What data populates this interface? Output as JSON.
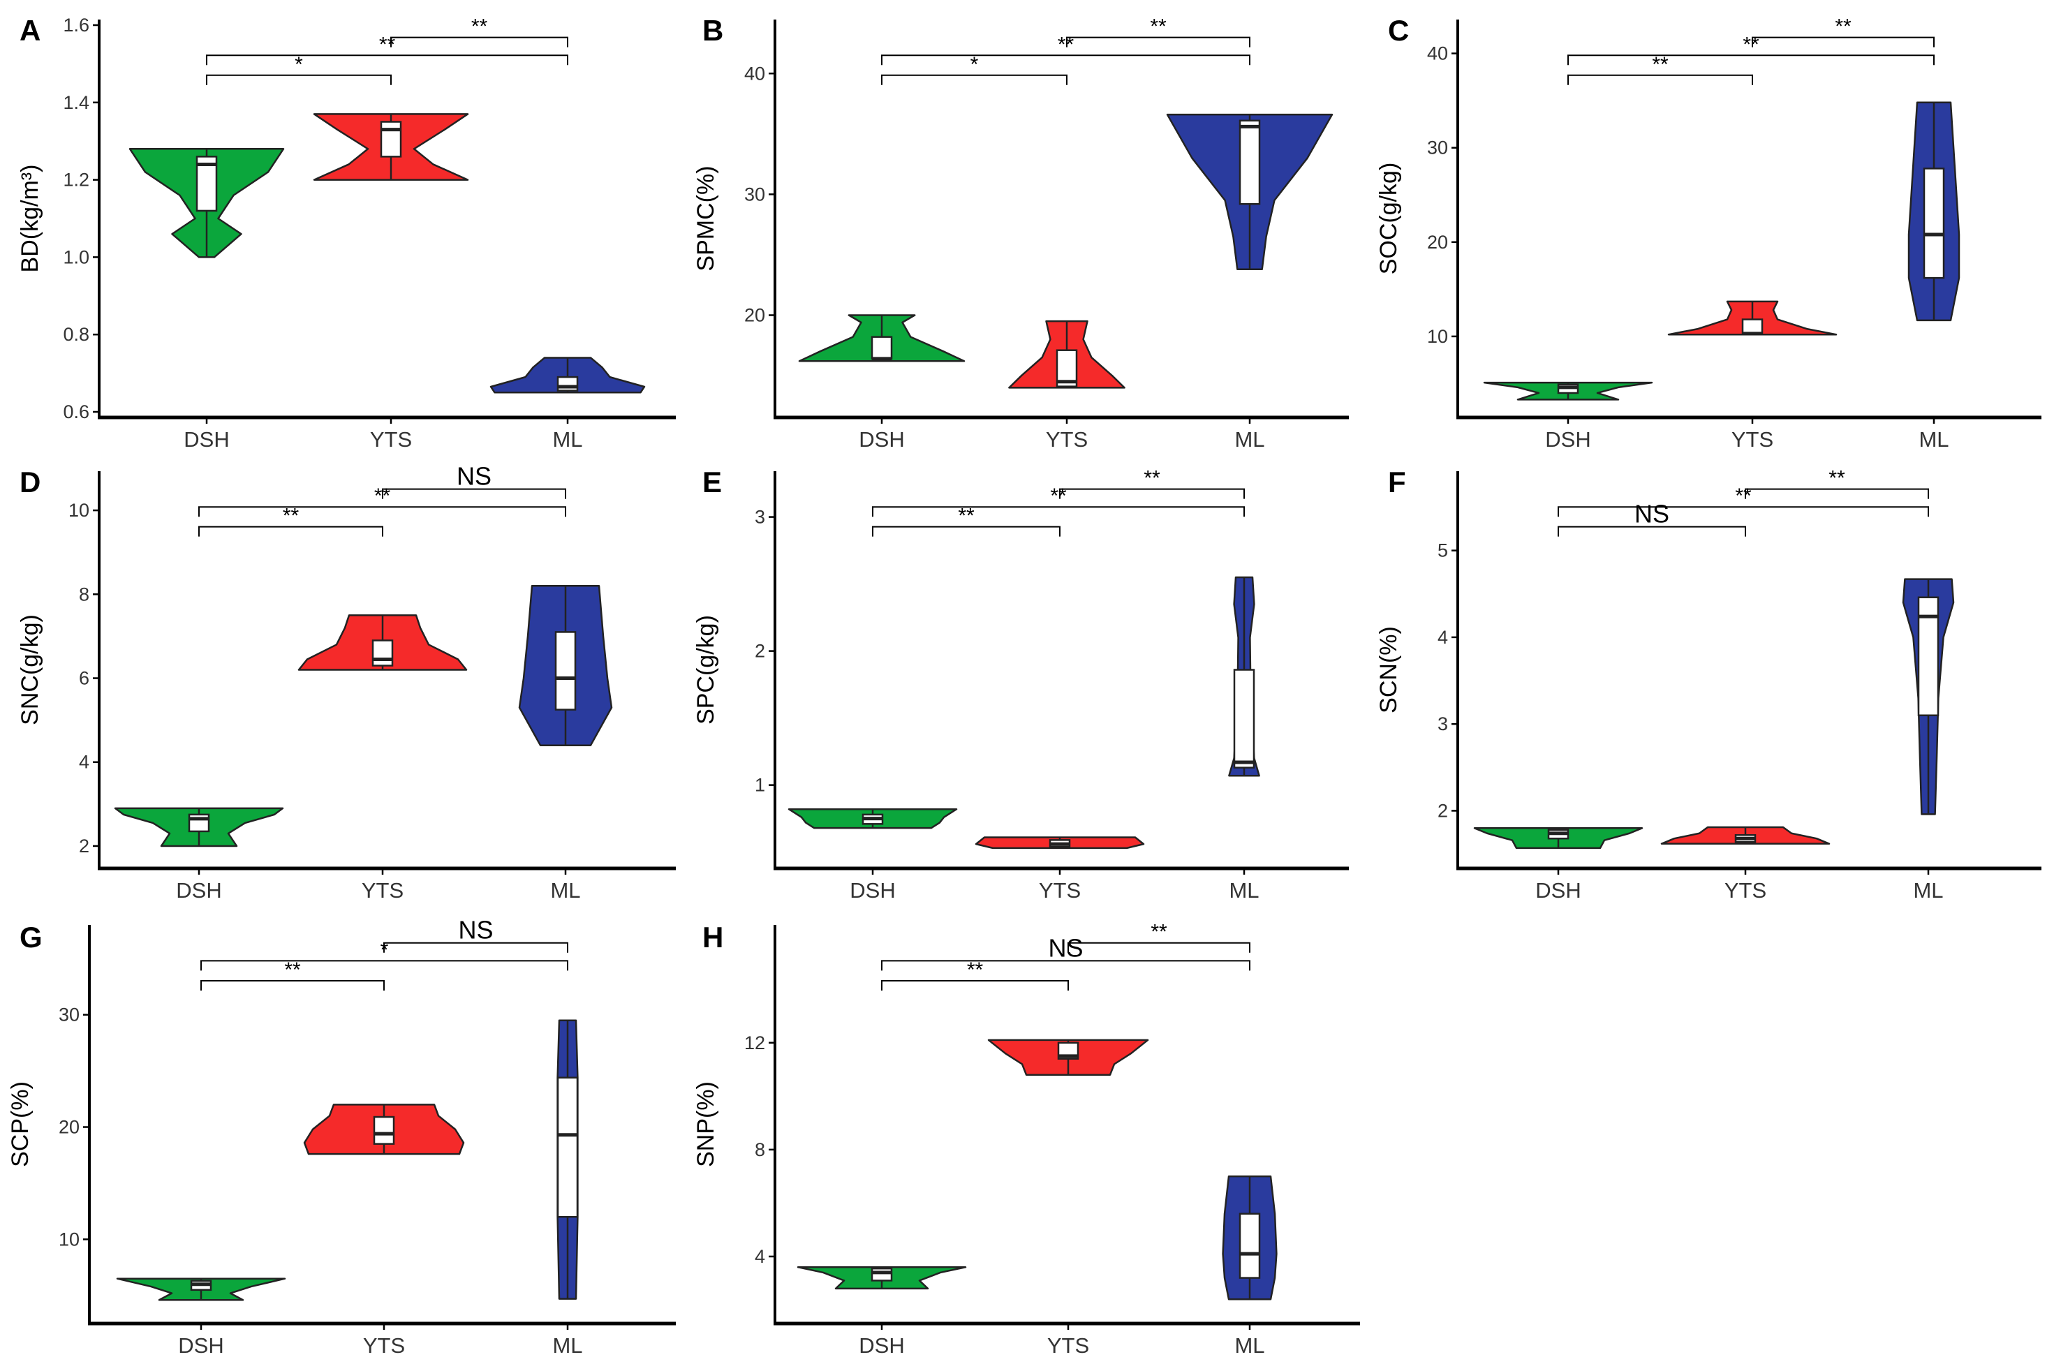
{
  "colors": {
    "DSH": "#0ba63c",
    "YTS": "#f52a2a",
    "ML": "#2a3b9e",
    "box": "#ffffff",
    "line": "#222222"
  },
  "chart_data": [
    {
      "panel": "A",
      "type": "violin",
      "ylabel": "BD(kg/m³)",
      "ylim": [
        0.6,
        1.6
      ],
      "yticks": [
        0.6,
        0.8,
        1.0,
        1.2,
        1.4,
        1.6
      ],
      "ytick_labels": [
        "0.6",
        "0.8",
        "1.0",
        "1.2",
        "1.4",
        "1.6"
      ],
      "categories": [
        "DSH",
        "YTS",
        "ML"
      ],
      "groups": [
        {
          "name": "DSH",
          "min": 1.0,
          "q1": 1.12,
          "median": 1.24,
          "q3": 1.26,
          "max": 1.28,
          "profile": [
            [
              1.0,
              0.1
            ],
            [
              1.06,
              0.45
            ],
            [
              1.1,
              0.15
            ],
            [
              1.16,
              0.35
            ],
            [
              1.22,
              0.8
            ],
            [
              1.28,
              1.0
            ]
          ]
        },
        {
          "name": "YTS",
          "min": 1.2,
          "q1": 1.26,
          "median": 1.33,
          "q3": 1.35,
          "max": 1.37,
          "profile": [
            [
              1.2,
              1.0
            ],
            [
              1.24,
              0.55
            ],
            [
              1.28,
              0.3
            ],
            [
              1.33,
              0.7
            ],
            [
              1.37,
              1.0
            ]
          ]
        },
        {
          "name": "ML",
          "min": 0.65,
          "q1": 0.655,
          "median": 0.665,
          "q3": 0.69,
          "max": 0.74,
          "profile": [
            [
              0.65,
              0.95
            ],
            [
              0.665,
              1.0
            ],
            [
              0.69,
              0.55
            ],
            [
              0.715,
              0.45
            ],
            [
              0.74,
              0.3
            ]
          ]
        }
      ],
      "comparisons": [
        {
          "pair": [
            "DSH",
            "YTS"
          ],
          "label": "*"
        },
        {
          "pair": [
            "DSH",
            "ML"
          ],
          "label": "**"
        },
        {
          "pair": [
            "YTS",
            "ML"
          ],
          "label": "**"
        }
      ]
    },
    {
      "panel": "B",
      "type": "violin",
      "ylabel": "SPMC(%)",
      "ylim": [
        12,
        44
      ],
      "yticks": [
        20,
        30,
        40
      ],
      "ytick_labels": [
        "20",
        "30",
        "40"
      ],
      "categories": [
        "DSH",
        "YTS",
        "ML"
      ],
      "groups": [
        {
          "name": "DSH",
          "min": 16.2,
          "q1": 16.4,
          "median": 16.4,
          "q3": 18.2,
          "max": 20,
          "profile": [
            [
              16.2,
              1.0
            ],
            [
              17.0,
              0.75
            ],
            [
              18.2,
              0.35
            ],
            [
              19.4,
              0.25
            ],
            [
              20,
              0.4
            ]
          ]
        },
        {
          "name": "YTS",
          "min": 14,
          "q1": 14.1,
          "median": 14.5,
          "q3": 17.1,
          "max": 19.5,
          "profile": [
            [
              14,
              0.7
            ],
            [
              15.0,
              0.55
            ],
            [
              16.5,
              0.3
            ],
            [
              18,
              0.2
            ],
            [
              19.5,
              0.25
            ]
          ]
        },
        {
          "name": "ML",
          "min": 23.8,
          "q1": 29.2,
          "median": 35.6,
          "q3": 36.1,
          "max": 36.6,
          "profile": [
            [
              23.8,
              0.15
            ],
            [
              26.5,
              0.2
            ],
            [
              29.5,
              0.3
            ],
            [
              33,
              0.7
            ],
            [
              36.6,
              1.0
            ]
          ]
        }
      ],
      "comparisons": [
        {
          "pair": [
            "DSH",
            "YTS"
          ],
          "label": "*"
        },
        {
          "pair": [
            "DSH",
            "ML"
          ],
          "label": "**"
        },
        {
          "pair": [
            "YTS",
            "ML"
          ],
          "label": "**"
        }
      ]
    },
    {
      "panel": "C",
      "type": "violin",
      "ylabel": "SOC(g/kg)",
      "ylim": [
        2,
        43
      ],
      "yticks": [
        10,
        20,
        30,
        40
      ],
      "ytick_labels": [
        "10",
        "20",
        "30",
        "40"
      ],
      "categories": [
        "DSH",
        "YTS",
        "ML"
      ],
      "groups": [
        {
          "name": "DSH",
          "min": 3.3,
          "q1": 4.0,
          "median": 4.6,
          "q3": 4.9,
          "max": 5.1,
          "profile": [
            [
              3.3,
              0.6
            ],
            [
              4.0,
              0.35
            ],
            [
              4.6,
              0.6
            ],
            [
              5.1,
              1.0
            ]
          ]
        },
        {
          "name": "YTS",
          "min": 10.2,
          "q1": 10.3,
          "median": 10.3,
          "q3": 11.8,
          "max": 13.7,
          "profile": [
            [
              10.2,
              1.0
            ],
            [
              10.8,
              0.65
            ],
            [
              11.8,
              0.3
            ],
            [
              12.8,
              0.25
            ],
            [
              13.7,
              0.3
            ]
          ]
        },
        {
          "name": "ML",
          "min": 11.7,
          "q1": 16.2,
          "median": 20.8,
          "q3": 27.8,
          "max": 34.8,
          "profile": [
            [
              11.7,
              0.2
            ],
            [
              16.2,
              0.3
            ],
            [
              20.8,
              0.3
            ],
            [
              27.8,
              0.25
            ],
            [
              34.8,
              0.2
            ]
          ]
        }
      ],
      "comparisons": [
        {
          "pair": [
            "DSH",
            "YTS"
          ],
          "label": "**"
        },
        {
          "pair": [
            "DSH",
            "ML"
          ],
          "label": "**"
        },
        {
          "pair": [
            "YTS",
            "ML"
          ],
          "label": "**"
        }
      ]
    },
    {
      "panel": "D",
      "type": "violin",
      "ylabel": "SNC(g/kg)",
      "ylim": [
        1.6,
        10.8
      ],
      "yticks": [
        2,
        4,
        6,
        8,
        10
      ],
      "ytick_labels": [
        "2",
        "4",
        "6",
        "8",
        "10"
      ],
      "categories": [
        "DSH",
        "YTS",
        "ML"
      ],
      "groups": [
        {
          "name": "DSH",
          "min": 2.0,
          "q1": 2.35,
          "median": 2.65,
          "q3": 2.75,
          "max": 2.9,
          "profile": [
            [
              2.0,
              0.45
            ],
            [
              2.3,
              0.35
            ],
            [
              2.55,
              0.55
            ],
            [
              2.75,
              0.9
            ],
            [
              2.9,
              1.0
            ]
          ]
        },
        {
          "name": "YTS",
          "min": 6.2,
          "q1": 6.3,
          "median": 6.45,
          "q3": 6.9,
          "max": 7.5,
          "profile": [
            [
              6.2,
              1.0
            ],
            [
              6.45,
              0.9
            ],
            [
              6.8,
              0.55
            ],
            [
              7.2,
              0.45
            ],
            [
              7.5,
              0.4
            ]
          ]
        },
        {
          "name": "ML",
          "min": 4.4,
          "q1": 5.25,
          "median": 6.0,
          "q3": 7.1,
          "max": 8.2,
          "profile": [
            [
              4.4,
              0.3
            ],
            [
              5.3,
              0.55
            ],
            [
              6.0,
              0.5
            ],
            [
              7.0,
              0.45
            ],
            [
              8.2,
              0.4
            ]
          ]
        }
      ],
      "comparisons": [
        {
          "pair": [
            "DSH",
            "YTS"
          ],
          "label": "**"
        },
        {
          "pair": [
            "DSH",
            "ML"
          ],
          "label": "**"
        },
        {
          "pair": [
            "YTS",
            "ML"
          ],
          "label": "NS"
        }
      ]
    },
    {
      "panel": "E",
      "type": "violin",
      "ylabel": "SPC(g/kg)",
      "ylim": [
        0.42,
        3.3
      ],
      "yticks": [
        1,
        2,
        3
      ],
      "ytick_labels": [
        "1",
        "2",
        "3"
      ],
      "categories": [
        "DSH",
        "YTS",
        "ML"
      ],
      "groups": [
        {
          "name": "DSH",
          "min": 0.68,
          "q1": 0.71,
          "median": 0.75,
          "q3": 0.78,
          "max": 0.82,
          "profile": [
            [
              0.68,
              0.7
            ],
            [
              0.72,
              0.8
            ],
            [
              0.76,
              0.85
            ],
            [
              0.82,
              1.0
            ]
          ]
        },
        {
          "name": "YTS",
          "min": 0.53,
          "q1": 0.54,
          "median": 0.56,
          "q3": 0.59,
          "max": 0.61,
          "profile": [
            [
              0.53,
              0.8
            ],
            [
              0.56,
              1.0
            ],
            [
              0.61,
              0.9
            ]
          ]
        },
        {
          "name": "ML",
          "min": 1.07,
          "q1": 1.13,
          "median": 1.17,
          "q3": 1.86,
          "max": 2.55,
          "profile": [
            [
              1.07,
              0.18
            ],
            [
              1.2,
              0.12
            ],
            [
              1.6,
              0.08
            ],
            [
              2.1,
              0.07
            ],
            [
              2.35,
              0.12
            ],
            [
              2.55,
              0.1
            ]
          ]
        }
      ],
      "comparisons": [
        {
          "pair": [
            "DSH",
            "YTS"
          ],
          "label": "**"
        },
        {
          "pair": [
            "DSH",
            "ML"
          ],
          "label": "**"
        },
        {
          "pair": [
            "YTS",
            "ML"
          ],
          "label": "**"
        }
      ]
    },
    {
      "panel": "F",
      "type": "violin",
      "ylabel": "SCN(%)",
      "ylim": [
        1.4,
        5.85
      ],
      "yticks": [
        2,
        3,
        4,
        5
      ],
      "ytick_labels": [
        "2",
        "3",
        "4",
        "5"
      ],
      "categories": [
        "DSH",
        "YTS",
        "ML"
      ],
      "groups": [
        {
          "name": "DSH",
          "min": 1.57,
          "q1": 1.68,
          "median": 1.74,
          "q3": 1.78,
          "max": 1.8,
          "profile": [
            [
              1.57,
              0.5
            ],
            [
              1.66,
              0.55
            ],
            [
              1.74,
              0.85
            ],
            [
              1.8,
              1.0
            ]
          ]
        },
        {
          "name": "YTS",
          "min": 1.62,
          "q1": 1.64,
          "median": 1.68,
          "q3": 1.72,
          "max": 1.81,
          "profile": [
            [
              1.62,
              1.0
            ],
            [
              1.68,
              0.85
            ],
            [
              1.74,
              0.55
            ],
            [
              1.81,
              0.45
            ]
          ]
        },
        {
          "name": "ML",
          "min": 1.96,
          "q1": 3.1,
          "median": 4.24,
          "q3": 4.46,
          "max": 4.67,
          "profile": [
            [
              1.96,
              0.08
            ],
            [
              2.6,
              0.1
            ],
            [
              3.3,
              0.12
            ],
            [
              4.0,
              0.18
            ],
            [
              4.4,
              0.3
            ],
            [
              4.67,
              0.28
            ]
          ]
        }
      ],
      "comparisons": [
        {
          "pair": [
            "DSH",
            "YTS"
          ],
          "label": "NS"
        },
        {
          "pair": [
            "DSH",
            "ML"
          ],
          "label": "**"
        },
        {
          "pair": [
            "YTS",
            "ML"
          ],
          "label": "**"
        }
      ]
    },
    {
      "panel": "G",
      "type": "violin",
      "ylabel": "SCP(%)",
      "ylim": [
        3,
        37.5
      ],
      "yticks": [
        10,
        20,
        30
      ],
      "ytick_labels": [
        "10",
        "20",
        "30"
      ],
      "categories": [
        "DSH",
        "YTS",
        "ML"
      ],
      "groups": [
        {
          "name": "DSH",
          "min": 4.6,
          "q1": 5.5,
          "median": 6.0,
          "q3": 6.3,
          "max": 6.5,
          "profile": [
            [
              4.6,
              0.5
            ],
            [
              5.2,
              0.35
            ],
            [
              5.8,
              0.6
            ],
            [
              6.5,
              1.0
            ]
          ]
        },
        {
          "name": "YTS",
          "min": 17.6,
          "q1": 18.5,
          "median": 19.4,
          "q3": 20.9,
          "max": 22.0,
          "profile": [
            [
              17.6,
              0.9
            ],
            [
              18.6,
              0.95
            ],
            [
              19.8,
              0.85
            ],
            [
              21,
              0.65
            ],
            [
              22,
              0.6
            ]
          ]
        },
        {
          "name": "ML",
          "min": 4.7,
          "q1": 12.0,
          "median": 19.3,
          "q3": 24.4,
          "max": 29.5,
          "profile": [
            [
              4.7,
              0.1
            ],
            [
              12,
              0.12
            ],
            [
              19.3,
              0.12
            ],
            [
              24.4,
              0.12
            ],
            [
              29.5,
              0.1
            ]
          ]
        }
      ],
      "comparisons": [
        {
          "pair": [
            "DSH",
            "YTS"
          ],
          "label": "**"
        },
        {
          "pair": [
            "DSH",
            "ML"
          ],
          "label": "*"
        },
        {
          "pair": [
            "YTS",
            "ML"
          ],
          "label": "NS"
        }
      ]
    },
    {
      "panel": "H",
      "type": "violin",
      "ylabel": "SNP(%)",
      "ylim": [
        1.7,
        16.2
      ],
      "yticks": [
        4,
        8,
        12
      ],
      "ytick_labels": [
        "4",
        "8",
        "12"
      ],
      "categories": [
        "DSH",
        "YTS",
        "ML"
      ],
      "groups": [
        {
          "name": "DSH",
          "min": 2.8,
          "q1": 3.1,
          "median": 3.4,
          "q3": 3.55,
          "max": 3.6,
          "profile": [
            [
              2.8,
              0.55
            ],
            [
              3.1,
              0.45
            ],
            [
              3.4,
              0.7
            ],
            [
              3.6,
              1.0
            ]
          ]
        },
        {
          "name": "YTS",
          "min": 10.8,
          "q1": 11.4,
          "median": 11.5,
          "q3": 12.0,
          "max": 12.1,
          "profile": [
            [
              10.8,
              0.5
            ],
            [
              11.2,
              0.55
            ],
            [
              11.6,
              0.75
            ],
            [
              12.1,
              0.95
            ]
          ]
        },
        {
          "name": "ML",
          "min": 2.4,
          "q1": 3.2,
          "median": 4.1,
          "q3": 5.6,
          "max": 7.0,
          "profile": [
            [
              2.4,
              0.25
            ],
            [
              3.2,
              0.3
            ],
            [
              4.1,
              0.32
            ],
            [
              5.6,
              0.3
            ],
            [
              7.0,
              0.25
            ]
          ]
        }
      ],
      "comparisons": [
        {
          "pair": [
            "DSH",
            "YTS"
          ],
          "label": "**"
        },
        {
          "pair": [
            "DSH",
            "ML"
          ],
          "label": "NS"
        },
        {
          "pair": [
            "YTS",
            "ML"
          ],
          "label": "**"
        }
      ]
    }
  ]
}
